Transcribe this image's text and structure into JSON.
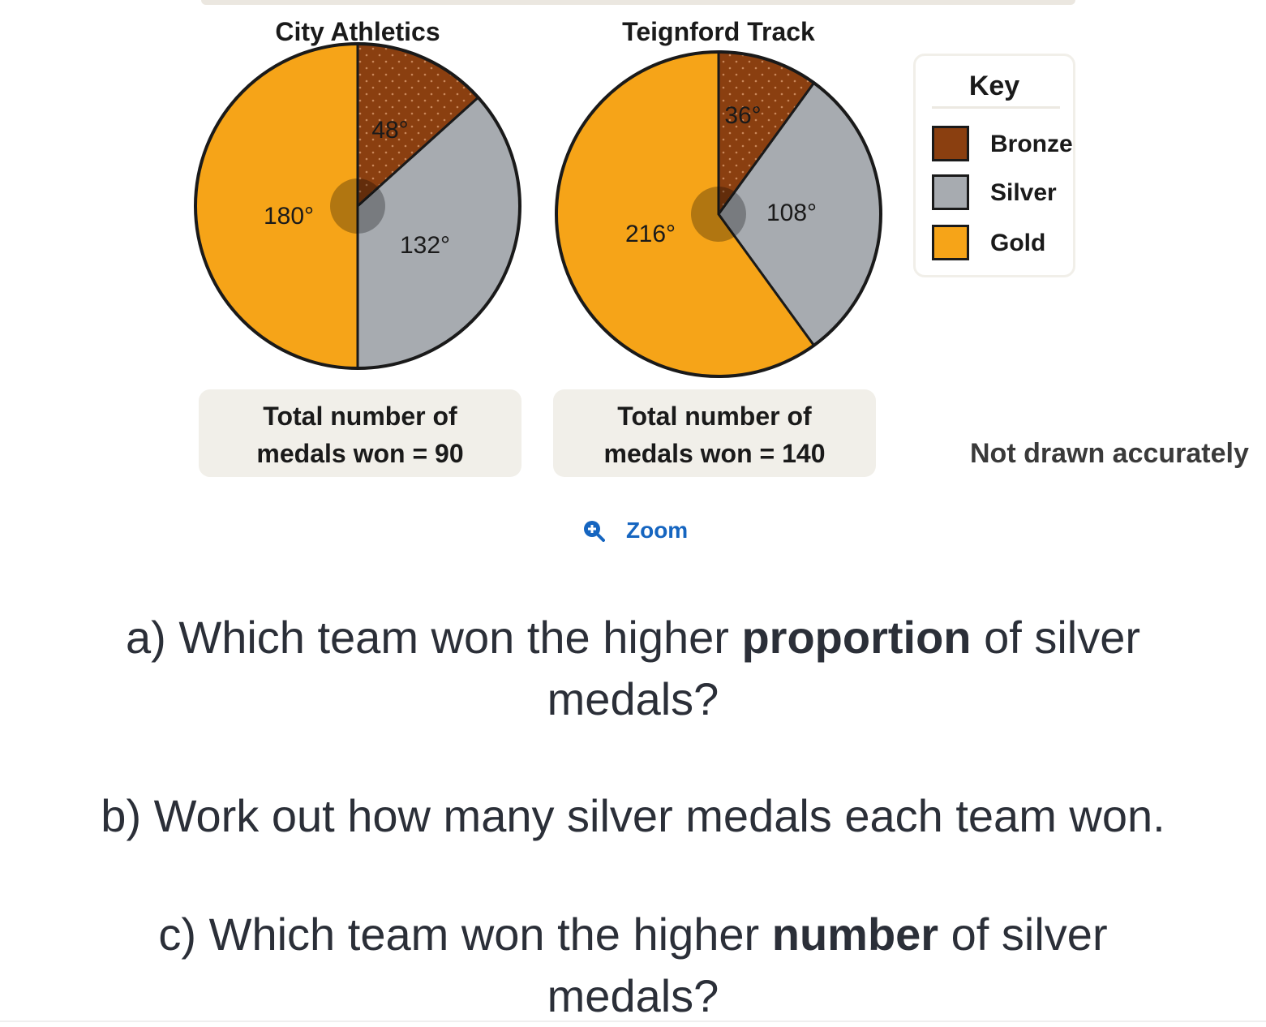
{
  "chart_data": [
    {
      "type": "pie",
      "title": "City Athletics",
      "slices": [
        {
          "label": "Bronze",
          "angle": 48,
          "angle_label": "48°"
        },
        {
          "label": "Silver",
          "angle": 132,
          "angle_label": "132°"
        },
        {
          "label": "Gold",
          "angle": 180,
          "angle_label": "180°"
        }
      ],
      "total_text_line1": "Total number of",
      "total_text_line2": "medals won = 90"
    },
    {
      "type": "pie",
      "title": "Teignford Track",
      "slices": [
        {
          "label": "Bronze",
          "angle": 36,
          "angle_label": "36°"
        },
        {
          "label": "Silver",
          "angle": 108,
          "angle_label": "108°"
        },
        {
          "label": "Gold",
          "angle": 216,
          "angle_label": "216°"
        }
      ],
      "total_text_line1": "Total number of",
      "total_text_line2": "medals won = 140"
    }
  ],
  "legend": {
    "title": "Key",
    "items": [
      {
        "label": "Bronze",
        "color": "#8a3f10"
      },
      {
        "label": "Silver",
        "color": "#a7abb0"
      },
      {
        "label": "Gold",
        "color": "#f6a418"
      }
    ]
  },
  "note": "Not drawn accurately",
  "zoom_label": "Zoom",
  "questions": {
    "a": {
      "pre": "a) Which team won the higher ",
      "bold": "proportion",
      "post": " of silver",
      "line2": "medals?"
    },
    "b": {
      "text": "b) Work out how many silver medals each team won."
    },
    "c": {
      "pre": "c) Which team won the higher ",
      "bold": "number",
      "post": " of silver",
      "line2": "medals?"
    }
  }
}
